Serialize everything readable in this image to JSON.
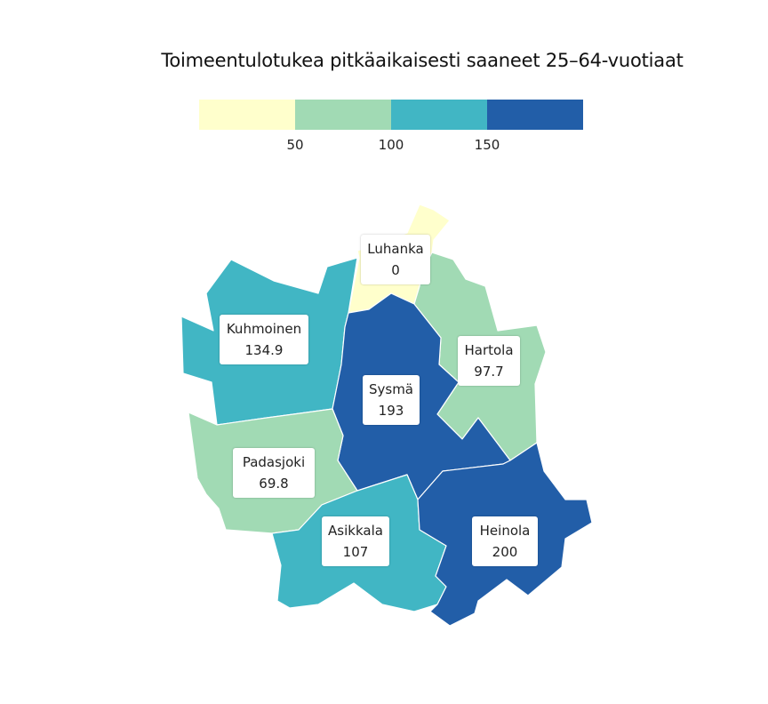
{
  "title": "Toimeentulotukea pitkäaikaisesti saaneet 25–64-vuotiaat",
  "legend": {
    "bins": [
      {
        "color": "#ffffcc"
      },
      {
        "color": "#a1dab4"
      },
      {
        "color": "#41b6c4"
      },
      {
        "color": "#225ea8"
      }
    ],
    "ticks": [
      "50",
      "100",
      "150"
    ]
  },
  "regions": [
    {
      "name": "Luhanka",
      "value": "0",
      "color": "#ffffcc"
    },
    {
      "name": "Kuhmoinen",
      "value": "134.9",
      "color": "#41b6c4"
    },
    {
      "name": "Hartola",
      "value": "97.7",
      "color": "#a1dab4"
    },
    {
      "name": "Sysmä",
      "value": "193",
      "color": "#225ea8"
    },
    {
      "name": "Padasjoki",
      "value": "69.8",
      "color": "#a1dab4"
    },
    {
      "name": "Asikkala",
      "value": "107",
      "color": "#41b6c4"
    },
    {
      "name": "Heinola",
      "value": "200",
      "color": "#225ea8"
    }
  ]
}
